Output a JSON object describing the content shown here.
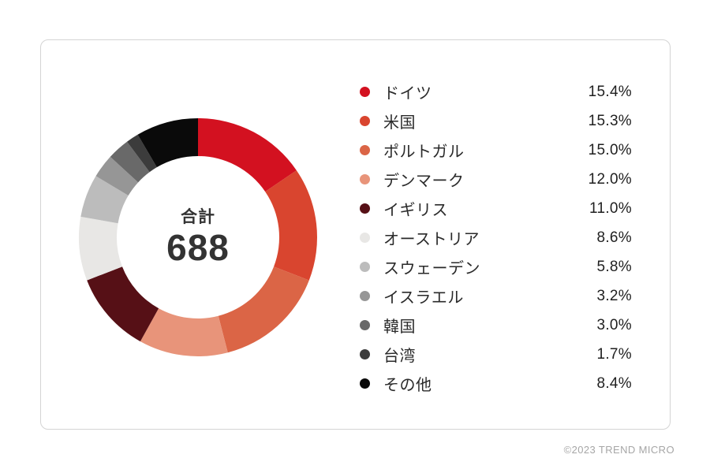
{
  "page": {
    "copyright": "©2023 TREND MICRO",
    "background": "#ffffff",
    "card_border_color": "#d4d4d4"
  },
  "chart_data": {
    "type": "pie",
    "subtype": "donut",
    "title": "",
    "center_label": "合計",
    "center_value": "688",
    "total": 688,
    "start_angle_deg": 0,
    "direction": "clockwise",
    "legend_position": "right",
    "grid": false,
    "categories": [
      "ドイツ",
      "米国",
      "ポルトガル",
      "デンマーク",
      "イギリス",
      "オーストリア",
      "スウェーデン",
      "イスラエル",
      "韓国",
      "台湾",
      "その他"
    ],
    "values_percent": [
      15.4,
      15.3,
      15.0,
      12.0,
      11.0,
      8.6,
      5.8,
      3.2,
      3.0,
      1.7,
      8.4
    ],
    "value_labels": [
      "15.4%",
      "15.3%",
      "15.0%",
      "12.0%",
      "11.0%",
      "8.6%",
      "5.8%",
      "3.2%",
      "3.0%",
      "1.7%",
      "8.4%"
    ],
    "colors": [
      "#d31120",
      "#d9452f",
      "#db6546",
      "#e8947a",
      "#561016",
      "#e8e7e5",
      "#bcbcbc",
      "#969696",
      "#696969",
      "#3c3c3c",
      "#0a0a0a"
    ],
    "text_color": "#2a2a2a"
  }
}
